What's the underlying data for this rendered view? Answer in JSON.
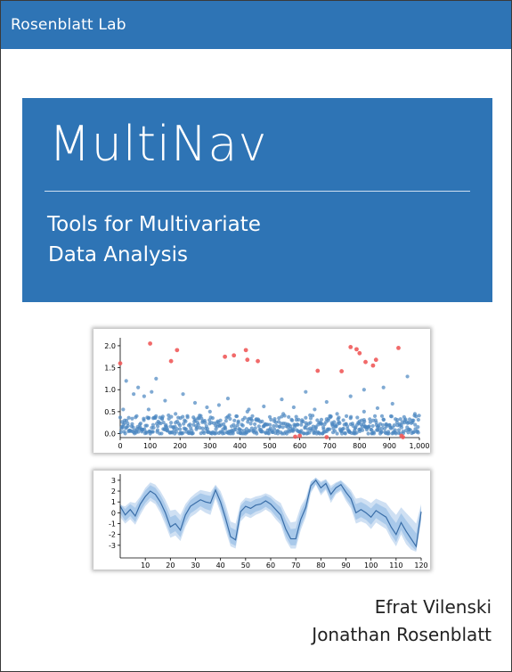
{
  "header": {
    "lab_name": "Rosenblatt Lab"
  },
  "cover": {
    "title": "MultiNav",
    "subtitle_lines": [
      "Tools for Multivariate",
      "Data Analysis"
    ],
    "authors": [
      "Efrat Vilenski",
      "Jonathan Rosenblatt"
    ]
  },
  "colors": {
    "brand_blue": "#2e74b5",
    "point_blue": "#4a86c0",
    "outlier_red": "#f05a5a",
    "band_light": "#cfe0f3",
    "band_mid": "#a9c9ea",
    "line": "#3a6ea8"
  },
  "chart_data": [
    {
      "type": "scatter",
      "x_tick_labels": [
        "0",
        "100",
        "200",
        "300",
        "400",
        "500",
        "600",
        "700",
        "800",
        "900",
        "1,000"
      ],
      "y_tick_labels": [
        "0.0",
        "0.5",
        "1.0",
        "1.5",
        "2.0"
      ],
      "xlim": [
        0,
        1000
      ],
      "ylim": [
        -0.05,
        2.1
      ],
      "series": [
        {
          "points": [
            [
              5,
              0.12
            ],
            [
              15,
              0.3
            ],
            [
              28,
              0.05
            ],
            [
              40,
              0.22
            ],
            [
              55,
              0.4
            ],
            [
              70,
              0.1
            ],
            [
              85,
              0.18
            ],
            [
              95,
              0.55
            ],
            [
              110,
              0.2
            ],
            [
              125,
              0.08
            ],
            [
              140,
              0.35
            ],
            [
              155,
              0.15
            ],
            [
              170,
              0.25
            ],
            [
              185,
              0.45
            ],
            [
              200,
              0.1
            ],
            [
              215,
              0.3
            ],
            [
              230,
              0.05
            ],
            [
              245,
              0.2
            ],
            [
              260,
              0.35
            ],
            [
              275,
              0.12
            ],
            [
              290,
              0.6
            ],
            [
              305,
              0.25
            ],
            [
              320,
              0.1
            ],
            [
              335,
              0.3
            ],
            [
              350,
              0.15
            ],
            [
              365,
              0.42
            ],
            [
              380,
              0.08
            ],
            [
              395,
              0.28
            ],
            [
              410,
              0.18
            ],
            [
              425,
              0.5
            ],
            [
              440,
              0.12
            ],
            [
              455,
              0.33
            ],
            [
              470,
              0.05
            ],
            [
              485,
              0.22
            ],
            [
              500,
              0.38
            ],
            [
              515,
              0.1
            ],
            [
              530,
              0.27
            ],
            [
              545,
              0.45
            ],
            [
              560,
              0.15
            ],
            [
              575,
              0.3
            ],
            [
              590,
              0.08
            ],
            [
              605,
              0.2
            ],
            [
              620,
              0.36
            ],
            [
              635,
              0.12
            ],
            [
              650,
              0.55
            ],
            [
              665,
              0.25
            ],
            [
              680,
              0.1
            ],
            [
              695,
              0.3
            ],
            [
              710,
              0.18
            ],
            [
              725,
              0.45
            ],
            [
              740,
              0.05
            ],
            [
              755,
              0.22
            ],
            [
              770,
              0.35
            ],
            [
              785,
              0.12
            ],
            [
              800,
              0.28
            ],
            [
              815,
              0.5
            ],
            [
              830,
              0.15
            ],
            [
              845,
              0.3
            ],
            [
              860,
              0.08
            ],
            [
              875,
              0.4
            ],
            [
              890,
              0.2
            ],
            [
              905,
              0.12
            ],
            [
              920,
              0.33
            ],
            [
              935,
              0.18
            ],
            [
              950,
              0.25
            ],
            [
              965,
              0.1
            ],
            [
              980,
              0.3
            ],
            [
              995,
              0.15
            ],
            [
              20,
              1.2
            ],
            [
              60,
              1.05
            ],
            [
              80,
              0.85
            ],
            [
              105,
              0.95
            ],
            [
              150,
              0.75
            ],
            [
              210,
              0.9
            ],
            [
              250,
              0.7
            ],
            [
              330,
              0.65
            ],
            [
              360,
              0.8
            ],
            [
              480,
              0.62
            ],
            [
              540,
              0.78
            ],
            [
              620,
              0.95
            ],
            [
              690,
              0.72
            ],
            [
              770,
              0.85
            ],
            [
              815,
              1.0
            ],
            [
              880,
              1.05
            ],
            [
              910,
              0.68
            ],
            [
              960,
              1.3
            ],
            [
              45,
              0.9
            ],
            [
              120,
              1.25
            ],
            [
              10,
              0.55
            ],
            [
              300,
              0.5
            ],
            [
              430,
              0.55
            ],
            [
              580,
              0.6
            ],
            [
              860,
              0.58
            ],
            [
              985,
              0.45
            ]
          ]
        },
        {
          "points": [
            [
              0,
              1.6
            ],
            [
              100,
              2.05
            ],
            [
              170,
              1.65
            ],
            [
              190,
              1.9
            ],
            [
              350,
              1.75
            ],
            [
              380,
              1.78
            ],
            [
              420,
              1.9
            ],
            [
              425,
              1.68
            ],
            [
              460,
              1.65
            ],
            [
              660,
              1.43
            ],
            [
              690,
              -0.08
            ],
            [
              740,
              1.42
            ],
            [
              770,
              1.97
            ],
            [
              790,
              1.92
            ],
            [
              800,
              1.83
            ],
            [
              820,
              1.63
            ],
            [
              845,
              1.55
            ],
            [
              855,
              1.68
            ],
            [
              930,
              1.95
            ],
            [
              940,
              -0.05
            ],
            [
              945,
              -0.08
            ],
            [
              585,
              -0.07
            ],
            [
              600,
              -0.05
            ]
          ]
        }
      ]
    },
    {
      "type": "line",
      "x_tick_labels": [
        "10",
        "20",
        "30",
        "40",
        "50",
        "60",
        "70",
        "80",
        "90",
        "100",
        "110",
        "120"
      ],
      "y_tick_labels": [
        "3",
        "2",
        "1",
        "0",
        "-1",
        "-2",
        "-3"
      ],
      "xlim": [
        0,
        120
      ],
      "ylim": [
        -4,
        3.4
      ],
      "x": [
        0,
        2,
        4,
        6,
        8,
        10,
        12,
        14,
        16,
        18,
        20,
        22,
        24,
        26,
        28,
        30,
        32,
        34,
        36,
        38,
        40,
        42,
        44,
        46,
        48,
        50,
        52,
        54,
        56,
        58,
        60,
        62,
        64,
        66,
        68,
        70,
        72,
        74,
        76,
        78,
        80,
        82,
        84,
        86,
        88,
        90,
        92,
        94,
        96,
        98,
        100,
        102,
        104,
        106,
        108,
        110,
        112,
        114,
        116,
        118,
        120
      ],
      "series": [
        {
          "values": [
            0.6,
            -0.2,
            0.3,
            -0.3,
            0.8,
            1.5,
            2.0,
            1.7,
            1.0,
            0.0,
            -1.3,
            -1.0,
            -1.6,
            -0.2,
            0.6,
            0.9,
            1.2,
            1.0,
            0.9,
            2.1,
            1.0,
            -0.5,
            -2.2,
            -2.5,
            0.1,
            0.6,
            0.4,
            0.7,
            0.8,
            1.1,
            0.8,
            0.3,
            -0.2,
            -1.5,
            -2.4,
            -2.4,
            -0.6,
            0.5,
            2.5,
            3.0,
            2.3,
            2.7,
            1.7,
            2.3,
            2.6,
            1.9,
            1.3,
            0.0,
            0.3,
            0.0,
            -0.4,
            0.2,
            -0.1,
            -0.4,
            -1.3,
            -2.0,
            -0.9,
            -1.7,
            -2.4,
            -3.1,
            0.1
          ]
        },
        {
          "values": [
            0.7,
            0.6,
            1.0,
            0.9,
            1.5,
            2.3,
            2.8,
            2.6,
            2.0,
            1.2,
            0.2,
            0.3,
            -0.2,
            0.8,
            1.4,
            1.8,
            2.1,
            2.0,
            1.9,
            2.6,
            2.0,
            0.8,
            -0.8,
            -1.0,
            0.9,
            1.4,
            1.3,
            1.5,
            1.6,
            1.8,
            1.6,
            1.2,
            0.9,
            -0.1,
            -0.9,
            -0.8,
            0.6,
            1.4,
            2.9,
            3.2,
            2.9,
            3.1,
            2.5,
            2.8,
            3.0,
            2.6,
            2.1,
            1.3,
            1.4,
            1.2,
            0.9,
            1.3,
            1.1,
            0.9,
            0.3,
            -0.2,
            0.5,
            0.0,
            -0.5,
            -1.0,
            0.8
          ]
        },
        {
          "values": [
            -0.4,
            -1.0,
            -0.6,
            -1.1,
            -0.2,
            0.6,
            1.1,
            0.8,
            0.0,
            -1.1,
            -2.3,
            -2.1,
            -2.6,
            -1.3,
            -0.4,
            -0.1,
            0.3,
            0.0,
            -0.2,
            1.3,
            0.0,
            -1.6,
            -3.1,
            -3.3,
            -0.8,
            -0.3,
            -0.5,
            -0.2,
            0.0,
            0.3,
            0.0,
            -0.6,
            -1.1,
            -2.5,
            -3.3,
            -3.3,
            -1.6,
            -0.4,
            1.8,
            2.6,
            1.6,
            2.1,
            0.9,
            1.7,
            2.0,
            1.1,
            0.4,
            -1.0,
            -0.8,
            -1.0,
            -1.5,
            -0.9,
            -1.2,
            -1.5,
            -2.4,
            -3.1,
            -2.0,
            -2.9,
            -3.4,
            -3.6,
            -0.8
          ]
        }
      ]
    }
  ]
}
